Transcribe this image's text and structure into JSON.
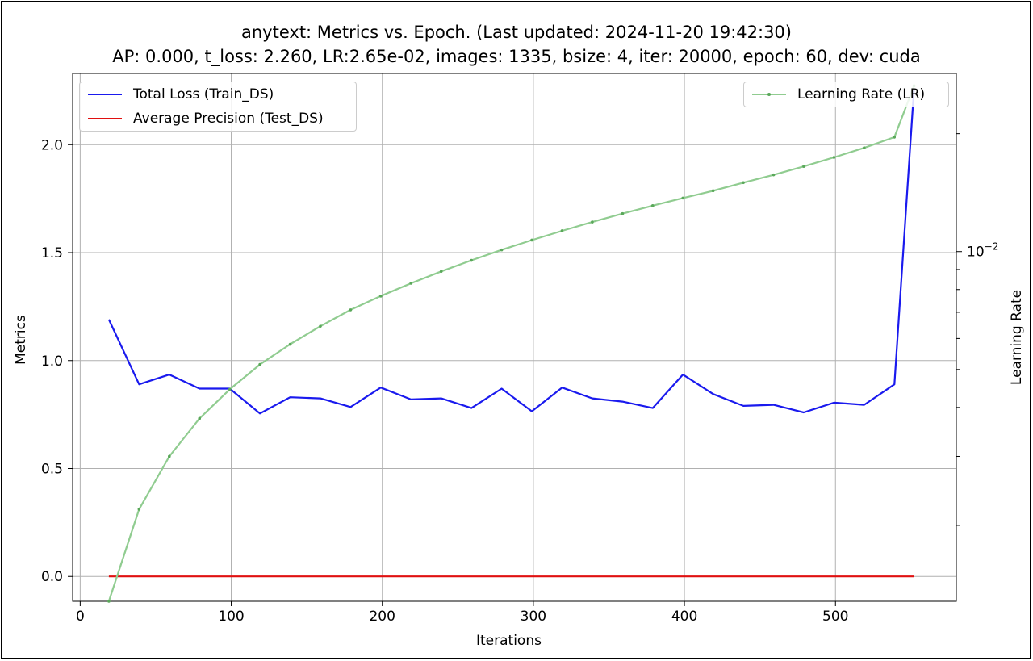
{
  "title": {
    "line1": "anytext: Metrics vs. Epoch. (Last updated: 2024-11-20 19:42:30)",
    "line2": "AP: 0.000, t_loss: 2.260, LR:2.65e-02, images: 1335, bsize: 4, iter: 20000, epoch: 60, dev: cuda"
  },
  "colors": {
    "loss": "#1a1aee",
    "ap": "#e01010",
    "lr": "#90cc90",
    "grid": "#b0b0b0"
  },
  "chart_data": {
    "type": "line",
    "xlabel": "Iterations",
    "ylabel": "Metrics",
    "y2label": "Learning Rate",
    "xlim": [
      -5,
      580
    ],
    "ylim": [
      -0.115,
      2.33
    ],
    "y2scale": "log",
    "y2lim": [
      0.00128,
      0.0285
    ],
    "x_ticks": [
      "0",
      "100",
      "200",
      "300",
      "400",
      "500"
    ],
    "y_ticks": [
      "0.0",
      "0.5",
      "1.0",
      "1.5",
      "2.0"
    ],
    "y2_tick_label": "10",
    "y2_tick_exponent": "−2",
    "grid": true,
    "legend_left": [
      "Total Loss (Train_DS)",
      "Average Precision (Test_DS)"
    ],
    "legend_right": [
      "Learning Rate (LR)"
    ],
    "series": [
      {
        "name": "Total Loss (Train_DS)",
        "axis": "left",
        "x": [
          19,
          39,
          59,
          79,
          99,
          119,
          139,
          159,
          179,
          199,
          219,
          239,
          259,
          279,
          299,
          319,
          339,
          359,
          379,
          399,
          419,
          439,
          459,
          479,
          499,
          519,
          539,
          552
        ],
        "y": [
          1.19,
          0.89,
          0.935,
          0.87,
          0.87,
          0.755,
          0.83,
          0.825,
          0.785,
          0.875,
          0.82,
          0.825,
          0.78,
          0.87,
          0.765,
          0.875,
          0.825,
          0.81,
          0.78,
          0.935,
          0.845,
          0.79,
          0.795,
          0.76,
          0.805,
          0.795,
          0.89,
          2.26
        ]
      },
      {
        "name": "Average Precision (Test_DS)",
        "axis": "left",
        "x": [
          19,
          552
        ],
        "y": [
          0.0,
          0.0
        ]
      },
      {
        "name": "Learning Rate (LR)",
        "axis": "right",
        "x": [
          19,
          39,
          59,
          79,
          99,
          119,
          139,
          159,
          179,
          199,
          219,
          239,
          259,
          279,
          299,
          319,
          339,
          359,
          379,
          399,
          419,
          439,
          459,
          479,
          499,
          519,
          539,
          552
        ],
        "y": [
          0.00128,
          0.0022,
          0.003,
          0.00375,
          0.00445,
          0.00515,
          0.0058,
          0.00645,
          0.0071,
          0.0077,
          0.0083,
          0.0089,
          0.0095,
          0.0101,
          0.0107,
          0.0113,
          0.0119,
          0.0125,
          0.0131,
          0.0137,
          0.0143,
          0.015,
          0.0157,
          0.0165,
          0.0174,
          0.0184,
          0.0196,
          0.0265
        ]
      }
    ]
  }
}
